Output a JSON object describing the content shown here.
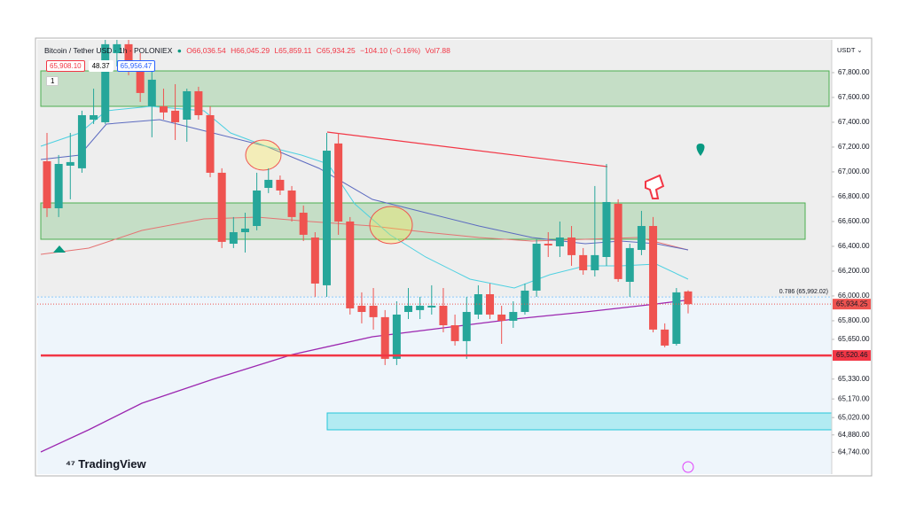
{
  "chart_data": {
    "type": "candlestick",
    "title": "Bitcoin / Tether USD · 1h · POLONIEX",
    "legend_texts": [
      "O66,036.54",
      "H66,045.29",
      "L65,859.11",
      "C65,934.25",
      "−104.10 (−0.16%)",
      "Vol7.88"
    ],
    "indicator_values": [
      "65,908.10",
      "48.37",
      "65,956.47"
    ],
    "badge": "1",
    "currency": "USDT",
    "brand": "TradingView",
    "up_color": "#26a69a",
    "down_color": "#ef5350",
    "open": [
      67086,
      66707,
      67050,
      67029,
      67421,
      67400,
      67957,
      68029,
      67814,
      67529,
      67529,
      67493,
      67421,
      67650,
      67457,
      66993,
      66421,
      66514,
      66564,
      66871,
      66936,
      66850,
      66671,
      66471,
      66086,
      67229,
      66600,
      65921,
      65921,
      65829,
      65493,
      65871,
      65886,
      65907,
      65921,
      65764,
      65636,
      65850,
      66014,
      65850,
      65800,
      65871,
      66043,
      66421,
      66400,
      66471,
      66329,
      66207,
      66314,
      66743,
      66114,
      66371,
      66564,
      65729,
      65614,
      66036.54
    ],
    "high": [
      67314,
      67136,
      67314,
      67493,
      67671,
      68064,
      68064,
      68064,
      67957,
      67814,
      67671,
      67707,
      67671,
      67686,
      67529,
      67029,
      66636,
      66671,
      66993,
      67029,
      66971,
      66886,
      66729,
      66514,
      67314,
      67314,
      66636,
      66029,
      66064,
      65886,
      65957,
      66064,
      65993,
      66086,
      66064,
      65850,
      65993,
      66086,
      66100,
      65921,
      65957,
      66100,
      66457,
      66514,
      66600,
      66564,
      66386,
      66886,
      67064,
      66779,
      66421,
      66686,
      66636,
      65779,
      66064,
      66045.29
    ],
    "low": [
      66636,
      66636,
      66779,
      66993,
      67386,
      67386,
      67850,
      67779,
      67564,
      67279,
      67421,
      67257,
      67243,
      67421,
      66957,
      66386,
      66386,
      66350,
      66529,
      66829,
      66814,
      66600,
      66443,
      65993,
      65993,
      66493,
      65850,
      65779,
      65729,
      65443,
      65443,
      65814,
      65814,
      65850,
      65707,
      65600,
      65493,
      65814,
      65814,
      65614,
      65743,
      65850,
      65993,
      66314,
      66314,
      66243,
      66171,
      66157,
      66243,
      66114,
      65993,
      66329,
      65707,
      65586,
      65600,
      65859.11
    ],
    "close": [
      66707,
      67064,
      67079,
      67457,
      67457,
      68029,
      68029,
      67850,
      67636,
      67743,
      67479,
      67400,
      67650,
      67457,
      66993,
      66436,
      66514,
      66543,
      66850,
      66936,
      66850,
      66636,
      66493,
      66100,
      67171,
      66600,
      65900,
      65871,
      65829,
      65493,
      65850,
      65921,
      65921,
      65921,
      65764,
      65636,
      65871,
      66014,
      65850,
      65800,
      65871,
      66043,
      66421,
      66407,
      66471,
      66329,
      66207,
      66329,
      66757,
      66136,
      66386,
      66564,
      65729,
      65600,
      66029,
      65934.25
    ],
    "ylim": [
      64564,
      68064
    ],
    "yticks": [
      {
        "value": 67800,
        "label": "67,800.00"
      },
      {
        "value": 67600,
        "label": "67,600.00"
      },
      {
        "value": 67400,
        "label": "67,400.00"
      },
      {
        "value": 67200,
        "label": "67,200.00"
      },
      {
        "value": 67000,
        "label": "67,000.00"
      },
      {
        "value": 66800,
        "label": "66,800.00"
      },
      {
        "value": 66600,
        "label": "66,600.00"
      },
      {
        "value": 66400,
        "label": "66,400.00"
      },
      {
        "value": 66200,
        "label": "66,200.00"
      },
      {
        "value": 66000,
        "label": "66,000.00"
      },
      {
        "value": 65800,
        "label": "65,800.00"
      },
      {
        "value": 65650,
        "label": "65,650.00"
      },
      {
        "value": 65330,
        "label": "65,330.00"
      },
      {
        "value": 65170,
        "label": "65,170.00"
      },
      {
        "value": 65020,
        "label": "65,020.00"
      },
      {
        "value": 64880,
        "label": "64,880.00"
      },
      {
        "value": 64740,
        "label": "64,740.00"
      }
    ],
    "last_price": {
      "value": 65934.25,
      "label": "65,934.25",
      "color": "#ef5350"
    },
    "price_lines": [
      {
        "value": 65520.46,
        "label": "65,520.46",
        "color": "#f23645"
      }
    ],
    "fib_level": {
      "value": 65992.02,
      "label": "0.786 (65,992.02)",
      "color": "#90caf9"
    }
  }
}
